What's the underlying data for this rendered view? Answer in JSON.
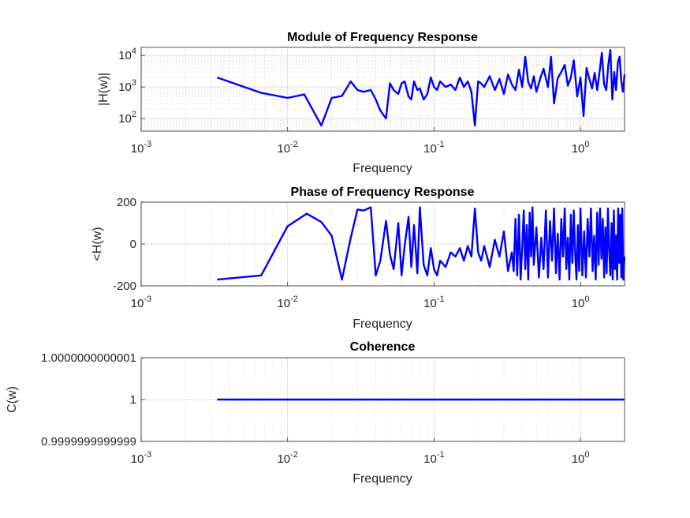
{
  "colors": {
    "line": "#0000ff",
    "axis": "#262626",
    "grid": "#d6d6d6",
    "background": "#ffffff"
  },
  "chart_data": [
    {
      "type": "line",
      "title": "Module of Frequency Response",
      "xlabel": "Frequency",
      "ylabel": "|H(w)|",
      "xscale": "log",
      "yscale": "log",
      "xlim": [
        0.001,
        2
      ],
      "ylim": [
        40,
        18000
      ],
      "grid": true,
      "x_ticks": [
        {
          "base": "10",
          "exp": "-3",
          "value": 0.001
        },
        {
          "base": "10",
          "exp": "-2",
          "value": 0.01
        },
        {
          "base": "10",
          "exp": "-1",
          "value": 0.1
        },
        {
          "base": "10",
          "exp": "0",
          "value": 1
        }
      ],
      "y_ticks": [
        {
          "base": "10",
          "exp": "2",
          "value": 100
        },
        {
          "base": "10",
          "exp": "3",
          "value": 1000
        },
        {
          "base": "10",
          "exp": "4",
          "value": 10000
        }
      ],
      "series": [
        {
          "x": [
            0.0033,
            0.0066,
            0.01,
            0.013,
            0.017,
            0.02,
            0.0235,
            0.027,
            0.03,
            0.033,
            0.037,
            0.04,
            0.043,
            0.047,
            0.05,
            0.053,
            0.057,
            0.06,
            0.063,
            0.067,
            0.07,
            0.073,
            0.077,
            0.08,
            0.085,
            0.09,
            0.095,
            0.1,
            0.105,
            0.11,
            0.12,
            0.13,
            0.14,
            0.15,
            0.16,
            0.17,
            0.18,
            0.19,
            0.2,
            0.21,
            0.22,
            0.24,
            0.26,
            0.28,
            0.3,
            0.32,
            0.34,
            0.36,
            0.38,
            0.4,
            0.42,
            0.44,
            0.46,
            0.48,
            0.5,
            0.53,
            0.56,
            0.6,
            0.63,
            0.66,
            0.7,
            0.74,
            0.78,
            0.82,
            0.86,
            0.9,
            0.95,
            1.0,
            1.05,
            1.1,
            1.15,
            1.2,
            1.25,
            1.3,
            1.35,
            1.4,
            1.45,
            1.5,
            1.55,
            1.6,
            1.65,
            1.7,
            1.75,
            1.8,
            1.85,
            1.9,
            1.95,
            2.0
          ],
          "y": [
            2000,
            650,
            450,
            580,
            60,
            450,
            520,
            1500,
            800,
            700,
            800,
            400,
            180,
            100,
            1300,
            800,
            600,
            1300,
            1500,
            500,
            400,
            1500,
            800,
            900,
            400,
            600,
            2000,
            1000,
            800,
            1500,
            1000,
            1200,
            800,
            2000,
            1000,
            1500,
            700,
            60,
            1500,
            1300,
            1000,
            2200,
            800,
            1800,
            600,
            2500,
            1200,
            800,
            3500,
            1000,
            9000,
            1400,
            900,
            2200,
            700,
            1800,
            3800,
            1000,
            9000,
            300,
            1900,
            3000,
            5000,
            1100,
            2000,
            7000,
            500,
            2000,
            120,
            4000,
            1800,
            900,
            2800,
            800,
            3000,
            12000,
            1200,
            800,
            5000,
            15000,
            400,
            3000,
            800,
            6000,
            9000,
            1500,
            700,
            2500
          ]
        }
      ]
    },
    {
      "type": "line",
      "title": "Phase of Frequency Response",
      "xlabel": "Frequency",
      "ylabel": "<H(w)",
      "xscale": "log",
      "xlim": [
        0.001,
        2
      ],
      "ylim": [
        -200,
        200
      ],
      "grid": true,
      "x_ticks": [
        {
          "base": "10",
          "exp": "-3",
          "value": 0.001
        },
        {
          "base": "10",
          "exp": "-2",
          "value": 0.01
        },
        {
          "base": "10",
          "exp": "-1",
          "value": 0.1
        },
        {
          "base": "10",
          "exp": "0",
          "value": 1
        }
      ],
      "y_ticks": [
        {
          "label": "200",
          "value": 200
        },
        {
          "label": "0",
          "value": 0
        },
        {
          "label": "-200",
          "value": -200
        }
      ],
      "series": [
        {
          "x": [
            0.0033,
            0.0066,
            0.01,
            0.0135,
            0.017,
            0.02,
            0.0235,
            0.027,
            0.03,
            0.033,
            0.037,
            0.04,
            0.043,
            0.047,
            0.05,
            0.053,
            0.057,
            0.06,
            0.063,
            0.067,
            0.07,
            0.073,
            0.077,
            0.08,
            0.085,
            0.09,
            0.095,
            0.1,
            0.105,
            0.11,
            0.12,
            0.13,
            0.14,
            0.15,
            0.16,
            0.17,
            0.18,
            0.19,
            0.2,
            0.21,
            0.22,
            0.24,
            0.26,
            0.28,
            0.3,
            0.32,
            0.34,
            0.35,
            0.36,
            0.37,
            0.38,
            0.39,
            0.4,
            0.41,
            0.42,
            0.43,
            0.44,
            0.45,
            0.46,
            0.47,
            0.48,
            0.5,
            0.52,
            0.54,
            0.56,
            0.58,
            0.6,
            0.62,
            0.64,
            0.66,
            0.68,
            0.7,
            0.72,
            0.74,
            0.76,
            0.78,
            0.8,
            0.82,
            0.84,
            0.86,
            0.88,
            0.9,
            0.92,
            0.94,
            0.96,
            0.98,
            1.0,
            1.03,
            1.06,
            1.09,
            1.12,
            1.15,
            1.18,
            1.21,
            1.24,
            1.27,
            1.3,
            1.33,
            1.36,
            1.39,
            1.42,
            1.45,
            1.48,
            1.51,
            1.54,
            1.57,
            1.6,
            1.63,
            1.66,
            1.69,
            1.72,
            1.75,
            1.78,
            1.81,
            1.84,
            1.87,
            1.9,
            1.93,
            1.96,
            2.0
          ],
          "y": [
            -170,
            -150,
            85,
            145,
            105,
            40,
            -170,
            30,
            165,
            160,
            175,
            -150,
            -80,
            110,
            -50,
            -120,
            100,
            -150,
            -10,
            130,
            -110,
            90,
            -140,
            175,
            -100,
            -150,
            -20,
            -120,
            -150,
            -80,
            -110,
            -40,
            -60,
            -20,
            -80,
            -10,
            -60,
            170,
            -40,
            -80,
            -10,
            -110,
            20,
            -60,
            60,
            -130,
            -40,
            -130,
            120,
            -150,
            140,
            -170,
            -20,
            160,
            -120,
            90,
            -170,
            150,
            -60,
            175,
            -100,
            80,
            -160,
            30,
            -120,
            160,
            -160,
            110,
            -80,
            170,
            -140,
            50,
            -170,
            120,
            -60,
            170,
            -120,
            30,
            -170,
            140,
            -90,
            160,
            -50,
            -170,
            90,
            -130,
            170,
            -150,
            60,
            -160,
            120,
            -60,
            170,
            -130,
            40,
            -170,
            150,
            -100,
            170,
            -70,
            120,
            -160,
            80,
            -140,
            170,
            -30,
            -150,
            100,
            -170,
            160,
            -120,
            40,
            -170,
            170,
            -90,
            140,
            -160,
            170,
            -170,
            -60
          ]
        }
      ]
    },
    {
      "type": "line",
      "title": "Coherence",
      "xlabel": "Frequency",
      "ylabel": "C(w)",
      "xscale": "log",
      "xlim": [
        0.001,
        2
      ],
      "ylim": [
        0.9999999999999,
        1.0000000000001
      ],
      "grid": true,
      "x_ticks": [
        {
          "base": "10",
          "exp": "-3",
          "value": 0.001
        },
        {
          "base": "10",
          "exp": "-2",
          "value": 0.01
        },
        {
          "base": "10",
          "exp": "-1",
          "value": 0.1
        },
        {
          "base": "10",
          "exp": "0",
          "value": 1
        }
      ],
      "y_ticks": [
        {
          "label": "1.0000000000001",
          "frac": 1.0
        },
        {
          "label": "1",
          "frac": 0.5
        },
        {
          "label": "0.9999999999999",
          "frac": 0.0
        }
      ],
      "series": [
        {
          "x": [
            0.0033,
            2.0
          ],
          "y": [
            1,
            1
          ]
        }
      ]
    }
  ]
}
